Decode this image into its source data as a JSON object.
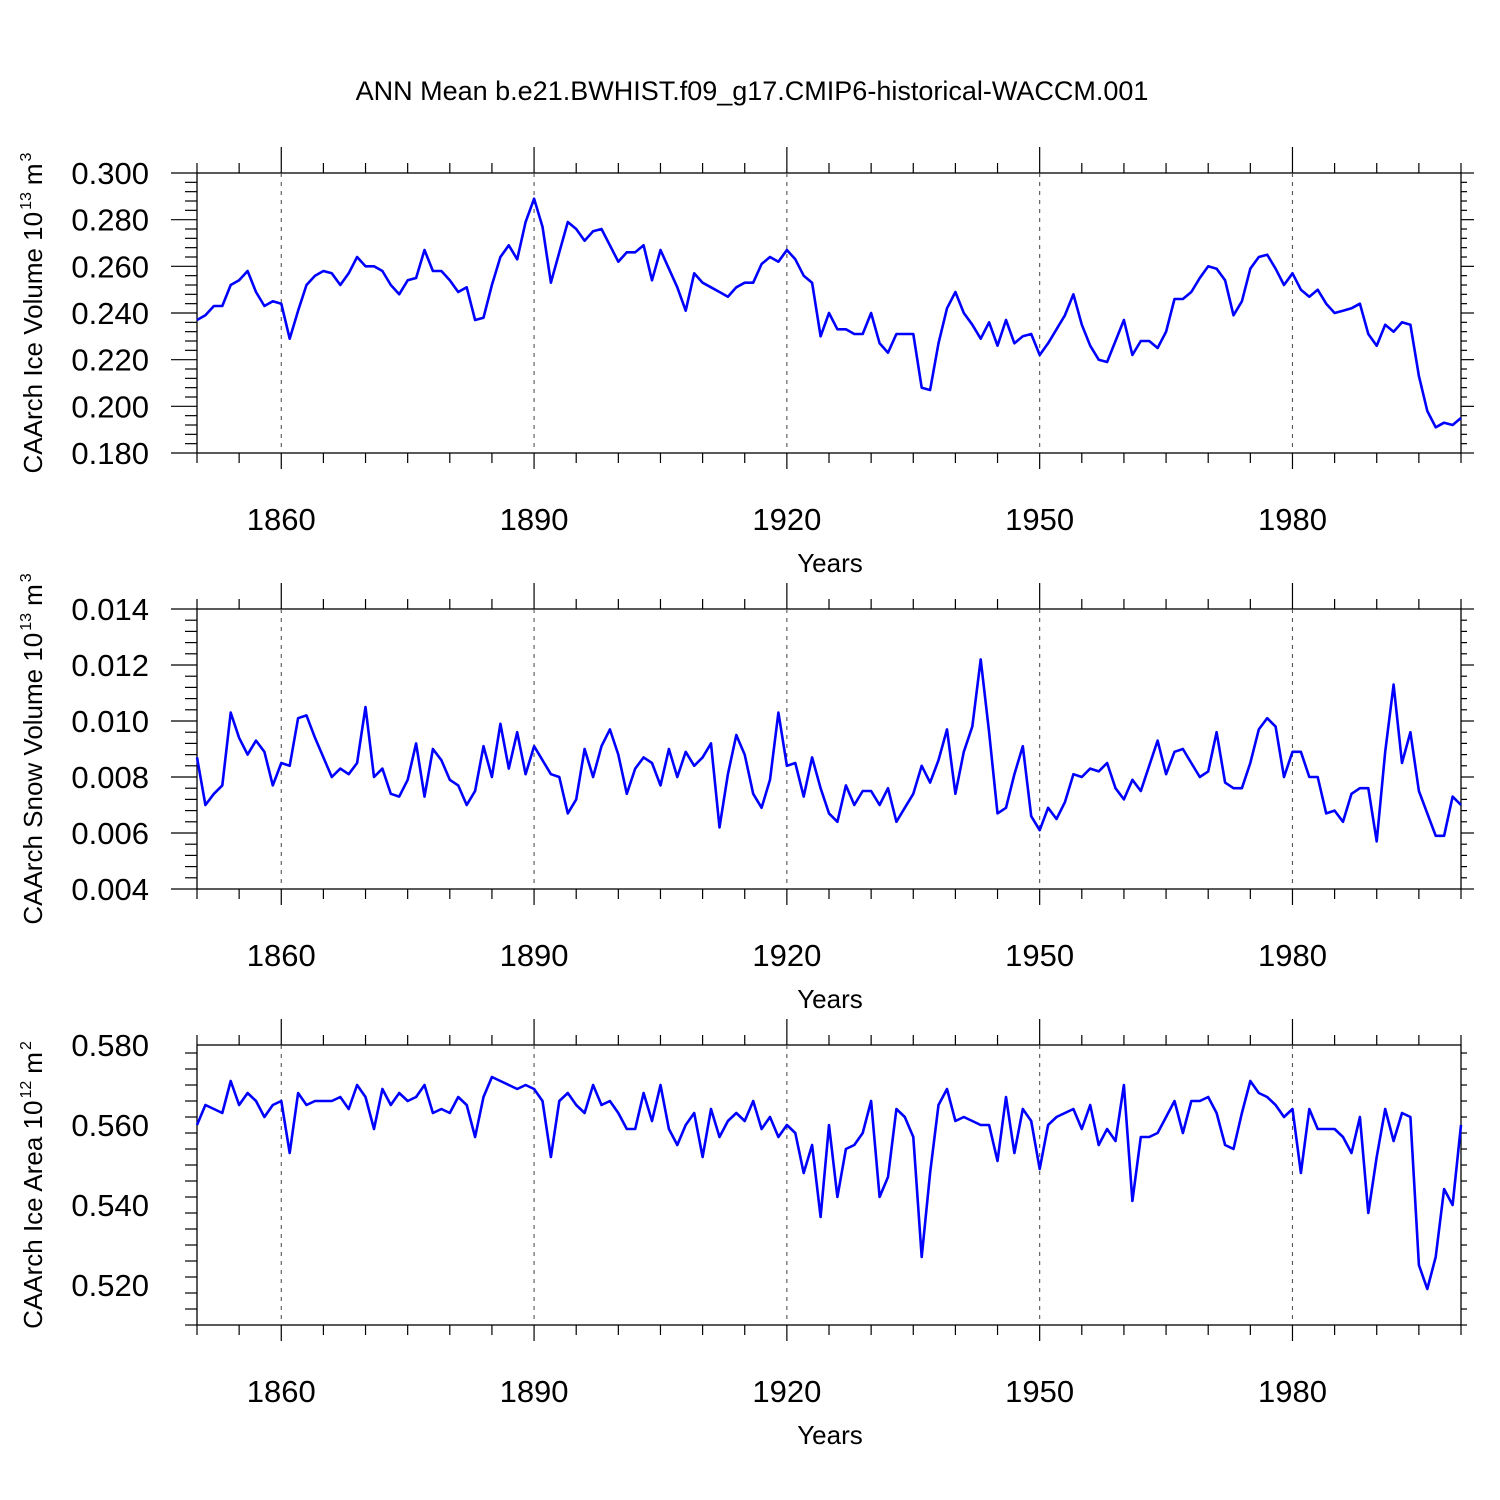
{
  "title": "ANN Mean b.e21.BWHIST.f09_g17.CMIP6-historical-WACCM.001",
  "colors": {
    "line": "#0000ff",
    "axis": "#000000"
  },
  "chart_data": [
    {
      "type": "line",
      "title": "ANN Mean b.e21.BWHIST.f09_g17.CMIP6-historical-WACCM.001",
      "xlabel": "Years",
      "ylabel": "CAArch Ice Volume 10",
      "ylabel_unit": "m",
      "ylabel_exp": "13",
      "ylabel_unit_exp": "3",
      "xlim": [
        1850,
        2000
      ],
      "ylim": [
        0.18,
        0.3
      ],
      "x_ticks": [
        "1860",
        "1890",
        "1920",
        "1950",
        "1980"
      ],
      "y_ticks": [
        "0.180",
        "0.200",
        "0.220",
        "0.240",
        "0.260",
        "0.280",
        "0.300"
      ],
      "x_start": 1850,
      "values": [
        0.237,
        0.239,
        0.243,
        0.243,
        0.252,
        0.254,
        0.258,
        0.249,
        0.243,
        0.245,
        0.244,
        0.229,
        0.241,
        0.252,
        0.256,
        0.258,
        0.257,
        0.252,
        0.257,
        0.264,
        0.26,
        0.26,
        0.258,
        0.252,
        0.248,
        0.254,
        0.255,
        0.267,
        0.258,
        0.258,
        0.254,
        0.249,
        0.251,
        0.237,
        0.238,
        0.252,
        0.264,
        0.269,
        0.263,
        0.279,
        0.289,
        0.277,
        0.253,
        0.266,
        0.279,
        0.276,
        0.271,
        0.275,
        0.276,
        0.269,
        0.262,
        0.266,
        0.266,
        0.269,
        0.254,
        0.267,
        0.259,
        0.251,
        0.241,
        0.257,
        0.253,
        0.251,
        0.249,
        0.247,
        0.251,
        0.253,
        0.253,
        0.261,
        0.264,
        0.262,
        0.267,
        0.263,
        0.256,
        0.253,
        0.23,
        0.24,
        0.233,
        0.233,
        0.231,
        0.231,
        0.24,
        0.227,
        0.223,
        0.231,
        0.231,
        0.231,
        0.208,
        0.207,
        0.227,
        0.242,
        0.249,
        0.24,
        0.235,
        0.229,
        0.236,
        0.226,
        0.237,
        0.227,
        0.23,
        0.231,
        0.222,
        0.227,
        0.233,
        0.239,
        0.248,
        0.235,
        0.226,
        0.22,
        0.219,
        0.228,
        0.237,
        0.222,
        0.228,
        0.228,
        0.225,
        0.232,
        0.246,
        0.246,
        0.249,
        0.255,
        0.26,
        0.259,
        0.254,
        0.239,
        0.245,
        0.259,
        0.264,
        0.265,
        0.259,
        0.252,
        0.257,
        0.25,
        0.247,
        0.25,
        0.244,
        0.24,
        0.241,
        0.242,
        0.244,
        0.231,
        0.226,
        0.235,
        0.232,
        0.236,
        0.235,
        0.213,
        0.198,
        0.191,
        0.193,
        0.192,
        0.195
      ]
    },
    {
      "type": "line",
      "xlabel": "Years",
      "ylabel": "CAArch Snow Volume 10",
      "ylabel_unit": "m",
      "ylabel_exp": "13",
      "ylabel_unit_exp": "3",
      "xlim": [
        1850,
        2000
      ],
      "ylim": [
        0.004,
        0.014
      ],
      "x_ticks": [
        "1860",
        "1890",
        "1920",
        "1950",
        "1980"
      ],
      "y_ticks": [
        "0.004",
        "0.006",
        "0.008",
        "0.010",
        "0.012",
        "0.014"
      ],
      "x_start": 1850,
      "values": [
        0.0087,
        0.007,
        0.0074,
        0.0077,
        0.0103,
        0.0094,
        0.0088,
        0.0093,
        0.0089,
        0.0077,
        0.0085,
        0.0084,
        0.0101,
        0.0102,
        0.0094,
        0.0087,
        0.008,
        0.0083,
        0.0081,
        0.0085,
        0.0105,
        0.008,
        0.0083,
        0.0074,
        0.0073,
        0.0079,
        0.0092,
        0.0073,
        0.009,
        0.0086,
        0.0079,
        0.0077,
        0.007,
        0.0075,
        0.0091,
        0.008,
        0.0099,
        0.0083,
        0.0096,
        0.0081,
        0.0091,
        0.0086,
        0.0081,
        0.008,
        0.0067,
        0.0072,
        0.009,
        0.008,
        0.0091,
        0.0097,
        0.0088,
        0.0074,
        0.0083,
        0.0087,
        0.0085,
        0.0077,
        0.009,
        0.008,
        0.0089,
        0.0084,
        0.0087,
        0.0092,
        0.0062,
        0.0081,
        0.0095,
        0.0088,
        0.0074,
        0.0069,
        0.0079,
        0.0103,
        0.0084,
        0.0085,
        0.0073,
        0.0087,
        0.0076,
        0.0067,
        0.0064,
        0.0077,
        0.007,
        0.0075,
        0.0075,
        0.007,
        0.0076,
        0.0064,
        0.0069,
        0.0074,
        0.0084,
        0.0078,
        0.0086,
        0.0097,
        0.0074,
        0.0089,
        0.0098,
        0.0122,
        0.0096,
        0.0067,
        0.0069,
        0.0081,
        0.0091,
        0.0066,
        0.0061,
        0.0069,
        0.0065,
        0.0071,
        0.0081,
        0.008,
        0.0083,
        0.0082,
        0.0085,
        0.0076,
        0.0072,
        0.0079,
        0.0075,
        0.0084,
        0.0093,
        0.0081,
        0.0089,
        0.009,
        0.0085,
        0.008,
        0.0082,
        0.0096,
        0.0078,
        0.0076,
        0.0076,
        0.0085,
        0.0097,
        0.0101,
        0.0098,
        0.008,
        0.0089,
        0.0089,
        0.008,
        0.008,
        0.0067,
        0.0068,
        0.0064,
        0.0074,
        0.0076,
        0.0076,
        0.0057,
        0.0089,
        0.0113,
        0.0085,
        0.0096,
        0.0075,
        0.0067,
        0.0059,
        0.0059,
        0.0073,
        0.007
      ]
    },
    {
      "type": "line",
      "xlabel": "Years",
      "ylabel": "CAArch Ice Area 10",
      "ylabel_unit": "m",
      "ylabel_exp": "12",
      "ylabel_unit_exp": "2",
      "xlim": [
        1850,
        2000
      ],
      "ylim": [
        0.51,
        0.58
      ],
      "x_ticks": [
        "1860",
        "1890",
        "1920",
        "1950",
        "1980"
      ],
      "y_ticks": [
        "0.520",
        "0.540",
        "0.560",
        "0.580"
      ],
      "x_start": 1850,
      "values": [
        0.56,
        0.565,
        0.564,
        0.563,
        0.571,
        0.565,
        0.568,
        0.566,
        0.562,
        0.565,
        0.566,
        0.553,
        0.568,
        0.565,
        0.566,
        0.566,
        0.566,
        0.567,
        0.564,
        0.57,
        0.567,
        0.559,
        0.569,
        0.565,
        0.568,
        0.566,
        0.567,
        0.57,
        0.563,
        0.564,
        0.563,
        0.567,
        0.565,
        0.557,
        0.567,
        0.572,
        0.571,
        0.57,
        0.569,
        0.57,
        0.569,
        0.566,
        0.552,
        0.566,
        0.568,
        0.565,
        0.563,
        0.57,
        0.565,
        0.566,
        0.563,
        0.559,
        0.559,
        0.568,
        0.561,
        0.57,
        0.559,
        0.555,
        0.56,
        0.563,
        0.552,
        0.564,
        0.557,
        0.561,
        0.563,
        0.561,
        0.566,
        0.559,
        0.562,
        0.557,
        0.56,
        0.558,
        0.548,
        0.555,
        0.537,
        0.56,
        0.542,
        0.554,
        0.555,
        0.558,
        0.566,
        0.542,
        0.547,
        0.564,
        0.562,
        0.557,
        0.527,
        0.548,
        0.565,
        0.569,
        0.561,
        0.562,
        0.561,
        0.56,
        0.56,
        0.551,
        0.567,
        0.553,
        0.564,
        0.561,
        0.549,
        0.56,
        0.562,
        0.563,
        0.564,
        0.559,
        0.565,
        0.555,
        0.559,
        0.556,
        0.57,
        0.541,
        0.557,
        0.557,
        0.558,
        0.562,
        0.566,
        0.558,
        0.566,
        0.566,
        0.567,
        0.563,
        0.555,
        0.554,
        0.563,
        0.571,
        0.568,
        0.567,
        0.565,
        0.562,
        0.564,
        0.548,
        0.564,
        0.559,
        0.559,
        0.559,
        0.557,
        0.553,
        0.562,
        0.538,
        0.552,
        0.564,
        0.556,
        0.563,
        0.562,
        0.525,
        0.519,
        0.527,
        0.544,
        0.54,
        0.56
      ]
    }
  ]
}
